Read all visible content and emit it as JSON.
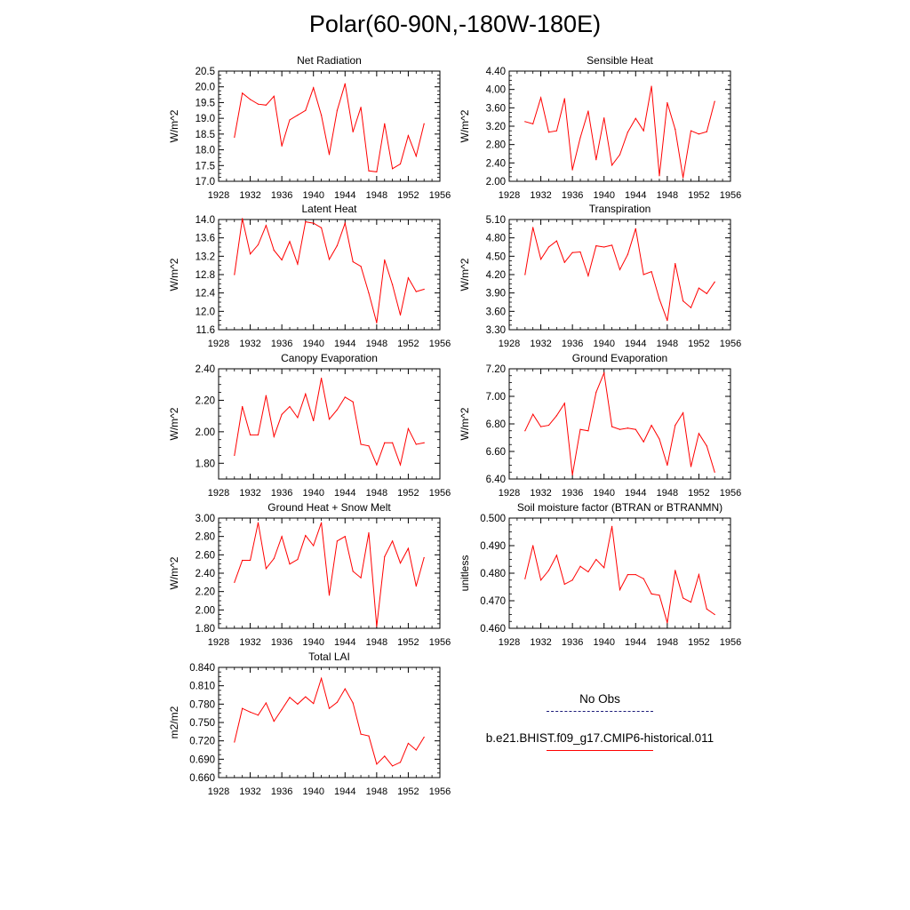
{
  "title": "Polar(60-90N,-180W-180E)",
  "legend": {
    "entries": [
      {
        "label": "No Obs",
        "color": "#1c1c7a",
        "style": "dashed"
      },
      {
        "label": "b.e21.BHIST.f09_g17.CMIP6-historical.011",
        "color": "#ff0000",
        "style": "solid"
      }
    ]
  },
  "chart_data": [
    {
      "type": "line",
      "title": "Net Radiation",
      "ylabel": "W/m^2",
      "xlim": [
        1928,
        1956
      ],
      "ylim": [
        17.0,
        20.5
      ],
      "xticks": [
        1928,
        1932,
        1936,
        1940,
        1944,
        1948,
        1952,
        1956
      ],
      "yticks": [
        "17.0",
        "17.5",
        "18.0",
        "18.5",
        "19.0",
        "19.5",
        "20.0",
        "20.5"
      ],
      "grid": false,
      "series": [
        {
          "color": "#ff0000",
          "x": [
            1930,
            1931,
            1932,
            1933,
            1934,
            1935,
            1936,
            1937,
            1938,
            1939,
            1940,
            1941,
            1942,
            1943,
            1944,
            1945,
            1946,
            1947,
            1948,
            1949,
            1950,
            1951,
            1952,
            1953,
            1954
          ],
          "values": [
            18.4,
            19.8,
            19.6,
            19.45,
            19.42,
            19.7,
            18.12,
            18.95,
            19.1,
            19.25,
            19.97,
            19.1,
            17.85,
            19.25,
            20.1,
            18.57,
            19.35,
            17.33,
            17.3,
            18.83,
            17.4,
            17.55,
            18.45,
            17.8,
            18.83
          ]
        }
      ]
    },
    {
      "type": "line",
      "title": "Sensible Heat",
      "ylabel": "W/m^2",
      "xlim": [
        1928,
        1956
      ],
      "ylim": [
        2.0,
        4.4
      ],
      "xticks": [
        1928,
        1932,
        1936,
        1940,
        1944,
        1948,
        1952,
        1956
      ],
      "yticks": [
        "2.00",
        "2.40",
        "2.80",
        "3.20",
        "3.60",
        "4.00",
        "4.40"
      ],
      "grid": false,
      "series": [
        {
          "color": "#ff0000",
          "x": [
            1930,
            1931,
            1932,
            1933,
            1934,
            1935,
            1936,
            1937,
            1938,
            1939,
            1940,
            1941,
            1942,
            1943,
            1944,
            1945,
            1946,
            1947,
            1948,
            1949,
            1950,
            1951,
            1952,
            1953,
            1954
          ],
          "values": [
            3.3,
            3.25,
            3.82,
            3.07,
            3.1,
            3.8,
            2.25,
            2.95,
            3.53,
            2.47,
            3.38,
            2.35,
            2.58,
            3.07,
            3.37,
            3.1,
            4.07,
            2.12,
            3.71,
            3.13,
            2.08,
            3.1,
            3.03,
            3.08,
            3.74
          ]
        }
      ]
    },
    {
      "type": "line",
      "title": "Latent Heat",
      "ylabel": "W/m^2",
      "xlim": [
        1928,
        1956
      ],
      "ylim": [
        11.6,
        14.0
      ],
      "xticks": [
        1928,
        1932,
        1936,
        1940,
        1944,
        1948,
        1952,
        1956
      ],
      "yticks": [
        "11.6",
        "12.0",
        "12.4",
        "12.8",
        "13.2",
        "13.6",
        "14.0"
      ],
      "grid": false,
      "series": [
        {
          "color": "#ff0000",
          "x": [
            1930,
            1931,
            1932,
            1933,
            1934,
            1935,
            1936,
            1937,
            1938,
            1939,
            1940,
            1941,
            1942,
            1943,
            1944,
            1945,
            1946,
            1947,
            1948,
            1949,
            1950,
            1951,
            1952,
            1953,
            1954
          ],
          "values": [
            12.8,
            14.02,
            13.25,
            13.45,
            13.87,
            13.33,
            13.12,
            13.52,
            13.03,
            13.95,
            13.92,
            13.82,
            13.13,
            13.43,
            13.92,
            13.08,
            12.98,
            12.4,
            11.75,
            13.12,
            12.58,
            11.92,
            12.73,
            12.43,
            12.48
          ]
        }
      ]
    },
    {
      "type": "line",
      "title": "Transpiration",
      "ylabel": "W/m^2",
      "xlim": [
        1928,
        1956
      ],
      "ylim": [
        3.3,
        5.1
      ],
      "xticks": [
        1928,
        1932,
        1936,
        1940,
        1944,
        1948,
        1952,
        1956
      ],
      "yticks": [
        "3.30",
        "3.60",
        "3.90",
        "4.20",
        "4.50",
        "4.80",
        "5.10"
      ],
      "grid": false,
      "series": [
        {
          "color": "#ff0000",
          "x": [
            1930,
            1931,
            1932,
            1933,
            1934,
            1935,
            1936,
            1937,
            1938,
            1939,
            1940,
            1941,
            1942,
            1943,
            1944,
            1945,
            1946,
            1947,
            1948,
            1949,
            1950,
            1951,
            1952,
            1953,
            1954
          ],
          "values": [
            4.2,
            4.97,
            4.45,
            4.65,
            4.75,
            4.4,
            4.56,
            4.57,
            4.18,
            4.67,
            4.65,
            4.68,
            4.28,
            4.53,
            4.95,
            4.2,
            4.25,
            3.8,
            3.45,
            4.38,
            3.77,
            3.66,
            3.98,
            3.89,
            4.08
          ]
        }
      ]
    },
    {
      "type": "line",
      "title": "Canopy Evaporation",
      "ylabel": "W/m^2",
      "xlim": [
        1928,
        1956
      ],
      "ylim": [
        1.7,
        2.4
      ],
      "xticks": [
        1928,
        1932,
        1936,
        1940,
        1944,
        1948,
        1952,
        1956
      ],
      "yticks": [
        "1.80",
        "2.00",
        "2.20",
        "2.40"
      ],
      "grid": false,
      "series": [
        {
          "color": "#ff0000",
          "x": [
            1930,
            1931,
            1932,
            1933,
            1934,
            1935,
            1936,
            1937,
            1938,
            1939,
            1940,
            1941,
            1942,
            1943,
            1944,
            1945,
            1946,
            1947,
            1948,
            1949,
            1950,
            1951,
            1952,
            1953,
            1954
          ],
          "values": [
            1.85,
            2.16,
            1.98,
            1.98,
            2.23,
            1.97,
            2.11,
            2.16,
            2.09,
            2.24,
            2.07,
            2.34,
            2.08,
            2.14,
            2.22,
            2.19,
            1.92,
            1.91,
            1.79,
            1.93,
            1.93,
            1.79,
            2.02,
            1.92,
            1.93
          ]
        }
      ]
    },
    {
      "type": "line",
      "title": "Ground Evaporation",
      "ylabel": "W/m^2",
      "xlim": [
        1928,
        1956
      ],
      "ylim": [
        6.4,
        7.2
      ],
      "xticks": [
        1928,
        1932,
        1936,
        1940,
        1944,
        1948,
        1952,
        1956
      ],
      "yticks": [
        "6.40",
        "6.60",
        "6.80",
        "7.00",
        "7.20"
      ],
      "grid": false,
      "series": [
        {
          "color": "#ff0000",
          "x": [
            1930,
            1931,
            1932,
            1933,
            1934,
            1935,
            1936,
            1937,
            1938,
            1939,
            1940,
            1941,
            1942,
            1943,
            1944,
            1945,
            1946,
            1947,
            1948,
            1949,
            1950,
            1951,
            1952,
            1953,
            1954
          ],
          "values": [
            6.75,
            6.87,
            6.78,
            6.79,
            6.86,
            6.95,
            6.43,
            6.76,
            6.75,
            7.03,
            7.17,
            6.78,
            6.76,
            6.77,
            6.76,
            6.67,
            6.79,
            6.69,
            6.5,
            6.79,
            6.88,
            6.49,
            6.73,
            6.64,
            6.45
          ]
        }
      ]
    },
    {
      "type": "line",
      "title": "Ground Heat + Snow Melt",
      "ylabel": "W/m^2",
      "xlim": [
        1928,
        1956
      ],
      "ylim": [
        1.8,
        3.0
      ],
      "xticks": [
        1928,
        1932,
        1936,
        1940,
        1944,
        1948,
        1952,
        1956
      ],
      "yticks": [
        "1.80",
        "2.00",
        "2.20",
        "2.40",
        "2.60",
        "2.80",
        "3.00"
      ],
      "grid": false,
      "series": [
        {
          "color": "#ff0000",
          "x": [
            1930,
            1931,
            1932,
            1933,
            1934,
            1935,
            1936,
            1937,
            1938,
            1939,
            1940,
            1941,
            1942,
            1943,
            1944,
            1945,
            1946,
            1947,
            1948,
            1949,
            1950,
            1951,
            1952,
            1953,
            1954
          ],
          "values": [
            2.3,
            2.54,
            2.54,
            2.95,
            2.45,
            2.56,
            2.8,
            2.5,
            2.55,
            2.81,
            2.7,
            2.95,
            2.16,
            2.75,
            2.8,
            2.42,
            2.35,
            2.84,
            1.82,
            2.58,
            2.75,
            2.51,
            2.67,
            2.26,
            2.57
          ]
        }
      ]
    },
    {
      "type": "line",
      "title": "Soil moisture factor (BTRAN or BTRANMN)",
      "ylabel": "unitless",
      "xlim": [
        1928,
        1956
      ],
      "ylim": [
        0.46,
        0.5
      ],
      "xticks": [
        1928,
        1932,
        1936,
        1940,
        1944,
        1948,
        1952,
        1956
      ],
      "yticks": [
        "0.460",
        "0.470",
        "0.480",
        "0.490",
        "0.500"
      ],
      "grid": false,
      "series": [
        {
          "color": "#ff0000",
          "x": [
            1930,
            1931,
            1932,
            1933,
            1934,
            1935,
            1936,
            1937,
            1938,
            1939,
            1940,
            1941,
            1942,
            1943,
            1944,
            1945,
            1946,
            1947,
            1948,
            1949,
            1950,
            1951,
            1952,
            1953,
            1954
          ],
          "values": [
            0.478,
            0.49,
            0.4775,
            0.481,
            0.4865,
            0.476,
            0.4775,
            0.4825,
            0.4805,
            0.485,
            0.482,
            0.497,
            0.474,
            0.4795,
            0.4795,
            0.478,
            0.4725,
            0.472,
            0.462,
            0.481,
            0.471,
            0.4695,
            0.4795,
            0.467,
            0.465
          ]
        }
      ]
    },
    {
      "type": "line",
      "title": "Total LAI",
      "ylabel": "m2/m2",
      "xlim": [
        1928,
        1956
      ],
      "ylim": [
        0.66,
        0.84
      ],
      "xticks": [
        1928,
        1932,
        1936,
        1940,
        1944,
        1948,
        1952,
        1956
      ],
      "yticks": [
        "0.660",
        "0.690",
        "0.720",
        "0.750",
        "0.780",
        "0.810",
        "0.840"
      ],
      "grid": false,
      "series": [
        {
          "color": "#ff0000",
          "x": [
            1930,
            1931,
            1932,
            1933,
            1934,
            1935,
            1936,
            1937,
            1938,
            1939,
            1940,
            1941,
            1942,
            1943,
            1944,
            1945,
            1946,
            1947,
            1948,
            1949,
            1950,
            1951,
            1952,
            1953,
            1954
          ],
          "values": [
            0.718,
            0.773,
            0.767,
            0.762,
            0.782,
            0.752,
            0.771,
            0.791,
            0.78,
            0.792,
            0.781,
            0.822,
            0.773,
            0.783,
            0.805,
            0.782,
            0.731,
            0.728,
            0.682,
            0.695,
            0.679,
            0.685,
            0.716,
            0.705,
            0.726
          ]
        }
      ]
    }
  ]
}
